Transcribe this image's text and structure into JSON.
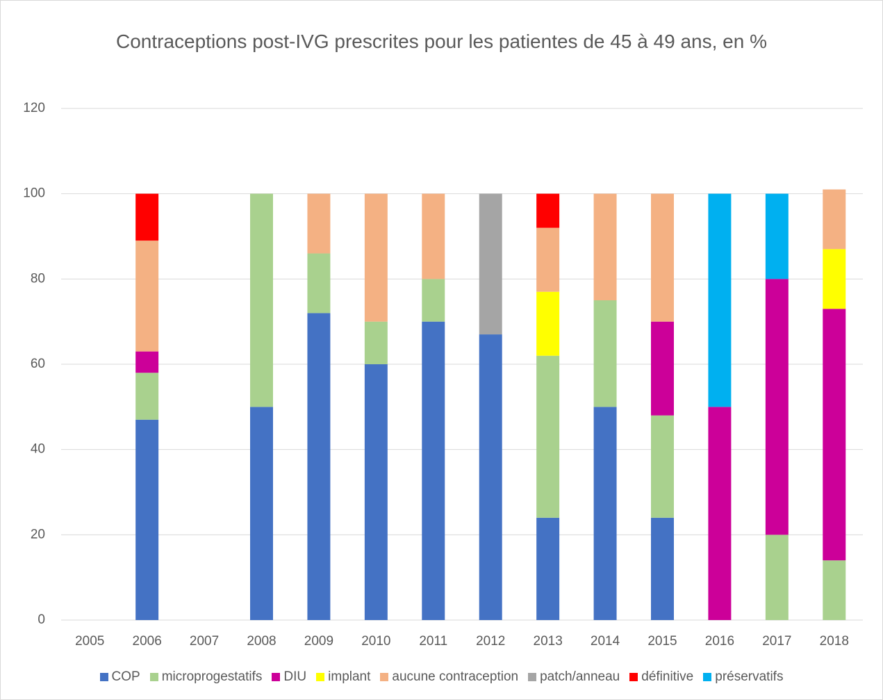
{
  "chart_data": {
    "type": "stacked_bar",
    "title": "Contraceptions post-IVG prescrites pour les patientes de 45 à 49 ans, en %",
    "categories": [
      "2005",
      "2006",
      "2007",
      "2008",
      "2009",
      "2010",
      "2011",
      "2012",
      "2013",
      "2014",
      "2015",
      "2016",
      "2017",
      "2018"
    ],
    "series": [
      {
        "name": "COP",
        "color": "#4472c4",
        "values": [
          0,
          47,
          0,
          50,
          72,
          60,
          70,
          67,
          24,
          50,
          24,
          0,
          0,
          0
        ]
      },
      {
        "name": "microprogestatifs",
        "color": "#a9d18e",
        "values": [
          0,
          11,
          0,
          50,
          14,
          10,
          10,
          0,
          38,
          25,
          24,
          0,
          20,
          14
        ]
      },
      {
        "name": "DIU",
        "color": "#cc0099",
        "values": [
          0,
          5,
          0,
          0,
          0,
          0,
          0,
          0,
          0,
          0,
          22,
          50,
          60,
          59
        ]
      },
      {
        "name": "implant",
        "color": "#ffff00",
        "values": [
          0,
          0,
          0,
          0,
          0,
          0,
          0,
          0,
          15,
          0,
          0,
          0,
          0,
          14
        ]
      },
      {
        "name": "aucune contraception",
        "color": "#f4b183",
        "values": [
          0,
          26,
          0,
          0,
          14,
          30,
          20,
          0,
          15,
          25,
          30,
          0,
          0,
          14
        ]
      },
      {
        "name": "patch/anneau",
        "color": "#a5a5a5",
        "values": [
          0,
          0,
          0,
          0,
          0,
          0,
          0,
          33,
          0,
          0,
          0,
          0,
          0,
          0
        ]
      },
      {
        "name": "définitive",
        "color": "#ff0000",
        "values": [
          0,
          11,
          0,
          0,
          0,
          0,
          0,
          0,
          8,
          0,
          0,
          0,
          0,
          0
        ]
      },
      {
        "name": "préservatifs",
        "color": "#00b0f0",
        "values": [
          0,
          0,
          0,
          0,
          0,
          0,
          0,
          0,
          0,
          0,
          0,
          50,
          20,
          0
        ]
      }
    ],
    "ylim": [
      0,
      120
    ],
    "yticks": [
      0,
      20,
      40,
      60,
      80,
      100,
      120
    ],
    "grid": true,
    "legend": "bottom"
  }
}
